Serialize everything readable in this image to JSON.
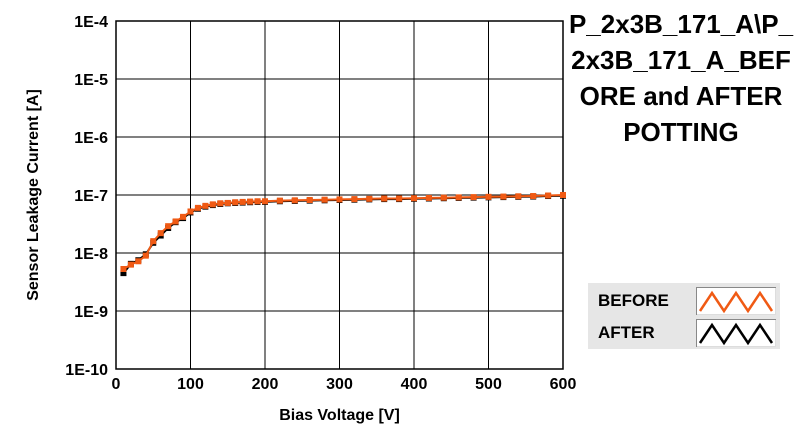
{
  "title": "P_2x3B_171_A\\P_2x3B_171_A_BEFORE and AFTER POTTING",
  "chart_data": {
    "type": "line",
    "title": "P_2x3B_171_A\\P_2x3B_171_A_BEFORE and AFTER POTTING",
    "xlabel": "Bias Voltage [V]",
    "ylabel": "Sensor Leakage Current [A]",
    "xlim": [
      0,
      600
    ],
    "ylim": [
      1e-10,
      0.0001
    ],
    "yscale": "log",
    "grid": true,
    "legend_position": "bottom-right",
    "xticks": [
      {
        "value": 0,
        "label": "0"
      },
      {
        "value": 100,
        "label": "100"
      },
      {
        "value": 200,
        "label": "200"
      },
      {
        "value": 300,
        "label": "300"
      },
      {
        "value": 400,
        "label": "400"
      },
      {
        "value": 500,
        "label": "500"
      },
      {
        "value": 600,
        "label": "600"
      }
    ],
    "yticks": [
      {
        "value": 0.0001,
        "label": "1E-4"
      },
      {
        "value": 1e-05,
        "label": "1E-5"
      },
      {
        "value": 1e-06,
        "label": "1E-6"
      },
      {
        "value": 1e-07,
        "label": "1E-7"
      },
      {
        "value": 1e-08,
        "label": "1E-8"
      },
      {
        "value": 1e-09,
        "label": "1E-9"
      },
      {
        "value": 1e-10,
        "label": "1E-10"
      }
    ],
    "series": [
      {
        "name": "AFTER",
        "color": "#000000",
        "x": [
          10,
          20,
          30,
          40,
          50,
          60,
          70,
          80,
          90,
          100,
          110,
          120,
          130,
          140,
          150,
          160,
          170,
          180,
          190,
          200,
          220,
          240,
          260,
          280,
          300,
          320,
          340,
          360,
          380,
          400,
          420,
          440,
          460,
          480,
          500,
          520,
          540,
          560,
          580,
          600
        ],
        "y": [
          4.5e-09,
          6.5e-09,
          7.5e-09,
          9.5e-09,
          1.5e-08,
          2e-08,
          2.7e-08,
          3.4e-08,
          4e-08,
          5e-08,
          5.8e-08,
          6.3e-08,
          6.7e-08,
          7e-08,
          7.2e-08,
          7.3e-08,
          7.4e-08,
          7.5e-08,
          7.6e-08,
          7.6e-08,
          7.8e-08,
          7.9e-08,
          8e-08,
          8.1e-08,
          8.2e-08,
          8.3e-08,
          8.4e-08,
          8.5e-08,
          8.5e-08,
          8.6e-08,
          8.7e-08,
          8.8e-08,
          8.9e-08,
          9e-08,
          9.1e-08,
          9.2e-08,
          9.3e-08,
          9.4e-08,
          9.6e-08,
          9.7e-08
        ]
      },
      {
        "name": "BEFORE",
        "color": "#f05a14",
        "x": [
          10,
          20,
          30,
          40,
          50,
          60,
          70,
          80,
          90,
          100,
          110,
          120,
          130,
          140,
          150,
          160,
          170,
          180,
          190,
          200,
          220,
          240,
          260,
          280,
          300,
          320,
          340,
          360,
          380,
          400,
          420,
          440,
          460,
          480,
          500,
          520,
          540,
          560,
          580,
          600
        ],
        "y": [
          5.3e-09,
          6.3e-09,
          7.2e-09,
          9e-09,
          1.6e-08,
          2.2e-08,
          2.9e-08,
          3.5e-08,
          4.2e-08,
          5.2e-08,
          6e-08,
          6.5e-08,
          6.9e-08,
          7.2e-08,
          7.3e-08,
          7.5e-08,
          7.6e-08,
          7.7e-08,
          7.8e-08,
          7.8e-08,
          8e-08,
          8.1e-08,
          8.2e-08,
          8.3e-08,
          8.4e-08,
          8.5e-08,
          8.6e-08,
          8.7e-08,
          8.7e-08,
          8.8e-08,
          8.9e-08,
          9e-08,
          9.1e-08,
          9.2e-08,
          9.3e-08,
          9.4e-08,
          9.5e-08,
          9.6e-08,
          9.8e-08,
          1e-07
        ]
      }
    ]
  },
  "legend": [
    {
      "label": "BEFORE",
      "color": "#f05a14"
    },
    {
      "label": "AFTER",
      "color": "#000000"
    }
  ]
}
